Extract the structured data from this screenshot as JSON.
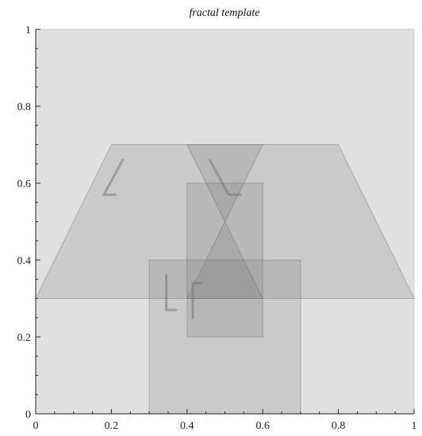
{
  "chart_data": {
    "type": "diagram",
    "title": "fractal template",
    "xlim": [
      0,
      1
    ],
    "ylim": [
      0,
      1
    ],
    "x_ticks": [
      0,
      0.2,
      0.4,
      0.6,
      0.8,
      1
    ],
    "x_tick_labels": [
      "0",
      "0.2",
      "0.4",
      "0.6",
      "0.8",
      "1"
    ],
    "y_ticks": [
      0,
      0.2,
      0.4,
      0.6,
      0.8,
      1
    ],
    "y_tick_labels": [
      "0",
      "0.2",
      "0.4",
      "0.6",
      "0.8",
      "1"
    ],
    "grid": false,
    "colors": {
      "background_square": "#e0e0e0",
      "shape_fill": "#6a6a6a",
      "shape_stroke": "#555555",
      "glyph": "#777777",
      "axis": "#222222"
    },
    "shapes": [
      {
        "name": "background-square",
        "points": [
          [
            0,
            0
          ],
          [
            1,
            0
          ],
          [
            1,
            1
          ],
          [
            0,
            1
          ]
        ]
      },
      {
        "name": "trapezoid",
        "points": [
          [
            0,
            0.3
          ],
          [
            1,
            0.3
          ],
          [
            0.8,
            0.7
          ],
          [
            0.2,
            0.7
          ]
        ]
      },
      {
        "name": "inverted-triangle",
        "points": [
          [
            0.4,
            0.7
          ],
          [
            0.6,
            0.7
          ],
          [
            0.5,
            0.5
          ]
        ]
      },
      {
        "name": "hourglass-lower-triangle",
        "points": [
          [
            0.5,
            0.5
          ],
          [
            0.6,
            0.3
          ],
          [
            0.4,
            0.3
          ]
        ]
      },
      {
        "name": "tall-rectangle",
        "points": [
          [
            0.4,
            0.2
          ],
          [
            0.6,
            0.2
          ],
          [
            0.6,
            0.6
          ],
          [
            0.4,
            0.6
          ]
        ]
      },
      {
        "name": "wide-rectangle",
        "points": [
          [
            0.3,
            0
          ],
          [
            0.7,
            0
          ],
          [
            0.7,
            0.4
          ],
          [
            0.3,
            0.4
          ]
        ]
      }
    ],
    "glyphs": [
      {
        "name": "l-glyph-left",
        "path": [
          [
            0.23,
            0.66
          ],
          [
            0.18,
            0.57
          ],
          [
            0.21,
            0.57
          ]
        ]
      },
      {
        "name": "l-glyph-center",
        "path": [
          [
            0.46,
            0.66
          ],
          [
            0.51,
            0.57
          ],
          [
            0.54,
            0.57
          ]
        ]
      },
      {
        "name": "l-glyph-bottom",
        "path": [
          [
            0.345,
            0.36
          ],
          [
            0.345,
            0.27
          ],
          [
            0.37,
            0.27
          ]
        ]
      },
      {
        "name": "t-glyph-bottom",
        "path": [
          [
            0.415,
            0.34
          ],
          [
            0.44,
            0.34
          ],
          [
            0.415,
            0.34
          ],
          [
            0.415,
            0.25
          ]
        ]
      }
    ]
  }
}
